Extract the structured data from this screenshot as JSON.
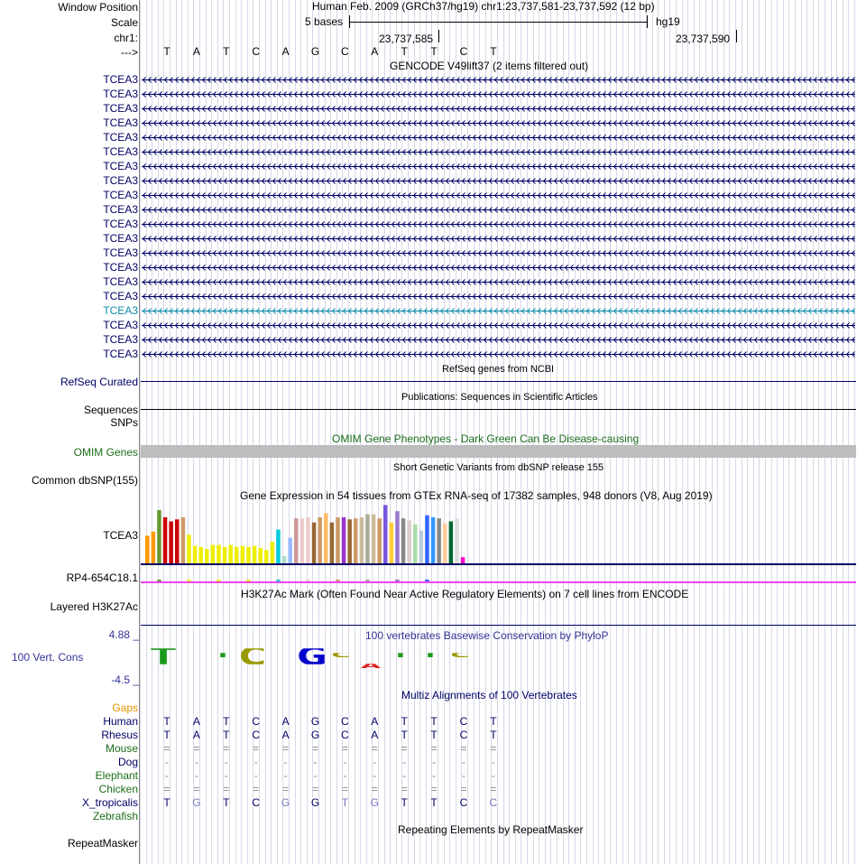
{
  "header": {
    "window_position_label": "Window Position",
    "window_position_value": "Human Feb. 2009 (GRCh37/hg19)   chr1:23,737,581-23,737,592 (12 bp)",
    "scale_label": "Scale",
    "scale_text": "5 bases",
    "assembly": "hg19",
    "chrom_label": "chr1:",
    "pos1": "23,737,585",
    "pos2": "23,737,590",
    "strand_label": "--->"
  },
  "bases": [
    "T",
    "A",
    "T",
    "C",
    "A",
    "G",
    "C",
    "A",
    "T",
    "T",
    "C",
    "T"
  ],
  "gencode": {
    "title": "GENCODE V49lift37 (2 items filtered out)",
    "genes": [
      "TCEA3",
      "TCEA3",
      "TCEA3",
      "TCEA3",
      "TCEA3",
      "TCEA3",
      "TCEA3",
      "TCEA3",
      "TCEA3",
      "TCEA3",
      "TCEA3",
      "TCEA3",
      "TCEA3",
      "TCEA3",
      "TCEA3",
      "TCEA3",
      "TCEA3",
      "TCEA3",
      "TCEA3",
      "TCEA3"
    ],
    "highlight_index": 16,
    "colors": {
      "gene": "#000066",
      "highlight": "#0b8bab"
    }
  },
  "refseq": {
    "title": "RefSeq genes from NCBI",
    "label": "RefSeq Curated"
  },
  "publications": {
    "title": "Publications: Sequences in Scientific Articles",
    "label": "Sequences"
  },
  "snps_label": "SNPs",
  "omim": {
    "title": "OMIM Gene Phenotypes - Dark Green Can Be Disease-causing",
    "label": "OMIM Genes",
    "color": "#1c6e1c"
  },
  "dbsnp": {
    "title": "Short Genetic Variants from dbSNP release 155",
    "label": "Common dbSNP(155)"
  },
  "gtex": {
    "title": "Gene Expression in 54 tissues from GTEx RNA-seq of 17382 samples, 948 donors (V8, Aug 2019)",
    "gene1": "TCEA3",
    "gene2": "RP4-654C18.1"
  },
  "chart_data": {
    "type": "bar",
    "title": "Gene Expression in 54 tissues from GTEx RNA-seq of 17382 samples, 948 donors (V8, Aug 2019)",
    "series": [
      {
        "name": "TCEA3",
        "values": [
          27,
          31,
          52,
          45,
          41,
          43,
          45,
          28,
          17,
          16,
          14,
          18,
          18,
          16,
          18,
          16,
          17,
          16,
          17,
          15,
          13,
          21,
          33,
          7,
          25,
          44,
          44,
          45,
          40,
          45,
          49,
          40,
          45,
          45,
          43,
          44,
          45,
          48,
          48,
          44,
          57,
          40,
          51,
          44,
          42,
          38,
          32,
          47,
          45,
          44,
          39,
          41,
          44,
          6
        ],
        "colors": [
          "#ff9900",
          "#ff9900",
          "#669933",
          "#cc0000",
          "#cc0000",
          "#cc0000",
          "#cc9966",
          "#eeee00",
          "#eeee00",
          "#eeee00",
          "#eeee00",
          "#eeee00",
          "#eeee00",
          "#eeee00",
          "#eeee00",
          "#eeee00",
          "#eeee00",
          "#eeee00",
          "#eeee00",
          "#eeee00",
          "#eeee00",
          "#eeee00",
          "#00ccdd",
          "#aaddcc",
          "#99bbff",
          "#cc9999",
          "#eecccc",
          "#eecccc",
          "#996633",
          "#cc9966",
          "#ffbb66",
          "#996633",
          "#cc9966",
          "#9933cc",
          "#996633",
          "#cc9966",
          "#ccbb99",
          "#aaaa99",
          "#ccbb99",
          "#cc9966",
          "#7755dd",
          "#ffcc33",
          "#9977cc",
          "#888888",
          "#ddcccc",
          "#aaddaa",
          "#bbccdd",
          "#3366ff",
          "#3399ff",
          "#888888",
          "#ffcc99",
          "#006633",
          "#dddddd",
          "#ff00cc"
        ]
      }
    ],
    "ylim": [
      0,
      60
    ]
  },
  "h3k27ac": {
    "title": "H3K27Ac Mark (Often Found Near Active Regulatory Elements) on 7 cell lines from ENCODE",
    "label": "Layered H3K27Ac"
  },
  "conservation": {
    "title": "100 vertebrates Basewise Conservation by PhyloP",
    "label": "100 Vert. Cons",
    "ymax": "4.88 _",
    "ymin": "-4.5 _",
    "scores": [
      3.0,
      0.0,
      1.5,
      2.0,
      0.0,
      3.4,
      0.4,
      -0.3,
      1.5,
      1.5,
      0.6,
      0.0
    ]
  },
  "multiz": {
    "title": "Multiz Alignments of 100 Vertebrates",
    "gaps_label": "Gaps",
    "species": [
      {
        "name": "Human",
        "color": "#000066",
        "bases": [
          "T",
          "A",
          "T",
          "C",
          "A",
          "G",
          "C",
          "A",
          "T",
          "T",
          "C",
          "T"
        ]
      },
      {
        "name": "Rhesus",
        "color": "#000066",
        "bases": [
          "T",
          "A",
          "T",
          "C",
          "A",
          "G",
          "C",
          "A",
          "T",
          "T",
          "C",
          "T"
        ]
      },
      {
        "name": "Mouse",
        "color": "#1c6e1c",
        "bases": [
          "=",
          "=",
          "=",
          "=",
          "=",
          "=",
          "=",
          "=",
          "=",
          "=",
          "=",
          "="
        ]
      },
      {
        "name": "Dog",
        "color": "#000066",
        "bases": [
          "-",
          "-",
          "-",
          "-",
          "-",
          "-",
          "-",
          "-",
          "-",
          "-",
          "-",
          "-"
        ]
      },
      {
        "name": "Elephant",
        "color": "#1c6e1c",
        "bases": [
          "-",
          "-",
          "-",
          "-",
          "-",
          "-",
          "-",
          "-",
          "-",
          "-",
          "-",
          "-"
        ]
      },
      {
        "name": "Chicken",
        "color": "#1c6e1c",
        "bases": [
          "=",
          "=",
          "=",
          "=",
          "=",
          "=",
          "=",
          "=",
          "=",
          "=",
          "=",
          "="
        ]
      },
      {
        "name": "X_tropicalis",
        "color": "#000066",
        "bases": [
          "T",
          "G",
          "T",
          "C",
          "G",
          "G",
          "T",
          "G",
          "T",
          "T",
          "C",
          "C"
        ]
      },
      {
        "name": "Zebrafish",
        "color": "#1c6e1c",
        "bases": [
          "",
          "",
          "",
          "",
          "",
          "",
          "",
          "",
          "",
          "",
          "",
          ""
        ]
      }
    ]
  },
  "repeatmasker": {
    "title": "Repeating Elements by RepeatMasker",
    "label": "RepeatMasker"
  }
}
